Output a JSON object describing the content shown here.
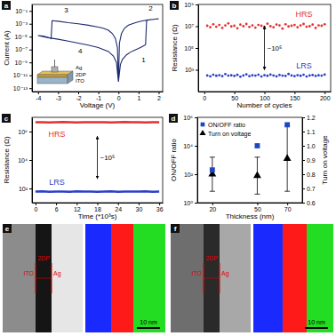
{
  "chart_data": [
    {
      "type": "line",
      "title": "a",
      "x_label": "Voltage (V)",
      "y_label": "Current (A)",
      "log": "y",
      "color": "#1c2a6e",
      "x": [
        0,
        0.1,
        0.2,
        0.4,
        0.6,
        0.8,
        1.0,
        1.2,
        1.35,
        1.4,
        1.5,
        1.75,
        2.0,
        1.75,
        1.5,
        1.25,
        1.0,
        0.75,
        0.5,
        0.3,
        0.15,
        0.05,
        0,
        -0.05,
        -0.15,
        -0.3,
        -0.5,
        -0.75,
        -1.0,
        -1.5,
        -2.0,
        -2.5,
        -3.0,
        -3.3,
        -3.35,
        -3.5,
        -3.75,
        -4.0,
        -3.75,
        -3.5,
        -3.0,
        -2.5,
        -2.0,
        -1.5,
        -1.0,
        -0.5,
        -0.25,
        -0.1,
        0
      ],
      "values": [
        1e-12,
        5e-10,
        3e-09,
        1.5e-08,
        4e-08,
        8e-08,
        1.5e-07,
        3e-07,
        6e-07,
        0.003,
        0.004,
        0.005,
        0.006,
        0.005,
        0.004,
        0.003,
        0.002,
        0.0012,
        0.0006,
        0.0002,
        3e-05,
        1e-06,
        1e-12,
        2e-07,
        5e-06,
        3e-05,
        0.0001,
        0.0002,
        0.0003,
        0.0006,
        0.001,
        0.0015,
        0.0025,
        0.003,
        5e-06,
        8e-06,
        1.2e-05,
        1.5e-05,
        1e-05,
        7e-06,
        4e-06,
        2e-06,
        1e-06,
        5e-07,
        2e-07,
        5e-08,
        1e-08,
        1e-09,
        1e-12
      ],
      "xlim": [
        -4.3,
        2.2
      ],
      "xticks": [
        -4,
        -3,
        -2,
        -1,
        0,
        1,
        2
      ],
      "ylim": [
        3e-14,
        1
      ],
      "yticks": [
        {
          "value": 1e-13,
          "label": "10⁻¹³"
        },
        {
          "value": 1e-11,
          "label": "10⁻¹¹"
        },
        {
          "value": 1e-09,
          "label": "10⁻⁹"
        },
        {
          "value": 1e-07,
          "label": "10⁻⁷"
        },
        {
          "value": 1e-05,
          "label": "10⁻⁵"
        },
        {
          "value": 0.001,
          "label": "10⁻³"
        },
        {
          "value": 0.1,
          "label": "10⁻¹"
        }
      ],
      "annotations": [
        {
          "text": "1",
          "x": 1.25,
          "y": 1e-09
        },
        {
          "text": "2",
          "x": 1.6,
          "y": 0.1
        },
        {
          "text": "3",
          "x": -2.6,
          "y": 0.05
        },
        {
          "text": "4",
          "x": -1.9,
          "y": 3e-08
        }
      ],
      "inset_labels": [
        "Ag",
        "2DP",
        "ITO"
      ]
    },
    {
      "type": "scatter",
      "title": "b",
      "x_label": "Number of cycles",
      "y_label": "Resistance (Ω)",
      "log": "y",
      "x": [
        5,
        10,
        15,
        20,
        25,
        30,
        35,
        40,
        45,
        50,
        55,
        60,
        65,
        70,
        75,
        80,
        85,
        90,
        95,
        100,
        105,
        110,
        115,
        120,
        125,
        130,
        135,
        140,
        145,
        150,
        155,
        160,
        165,
        170,
        175,
        180,
        185,
        190,
        195,
        200
      ],
      "series": [
        {
          "name": "HRS",
          "color": "#e53030",
          "values": [
            11000000.0,
            8000000.0,
            15000000.0,
            9000000.0,
            13000000.0,
            7000000.0,
            12000000.0,
            18000000.0,
            9500000.0,
            11000000.0,
            6500000.0,
            14000000.0,
            10000000.0,
            16000000.0,
            8500000.0,
            12000000.0,
            7500000.0,
            13000000.0,
            11000000.0,
            9000000.0,
            17000000.0,
            10000000.0,
            8000000.0,
            14000000.0,
            12000000.0,
            6000000.0,
            15000000.0,
            9500000.0,
            11000000.0,
            13000000.0,
            8000000.0,
            12000000.0,
            16000000.0,
            9000000.0,
            10000000.0,
            14000000.0,
            7000000.0,
            12000000.0,
            11000000.0,
            15000000.0
          ]
        },
        {
          "name": "LRS",
          "color": "#2b3fc8",
          "values": [
            300,
            250,
            350,
            280,
            320,
            260,
            400,
            290,
            310,
            270,
            340,
            230,
            300,
            380,
            260,
            310,
            290,
            350,
            240,
            320,
            280,
            360,
            300,
            250,
            330,
            290,
            270,
            410,
            300,
            260,
            320,
            280,
            350,
            240,
            300,
            330,
            270,
            310,
            290,
            360
          ]
        }
      ],
      "xlim": [
        -10,
        210
      ],
      "xticks": [
        0,
        50,
        100,
        150,
        200
      ],
      "ylim": [
        10,
        1000000000.0
      ],
      "yticks": [
        {
          "value": 1000,
          "label": "10³"
        },
        {
          "value": 100000,
          "label": "10⁵"
        },
        {
          "value": 10000000.0,
          "label": "10⁷"
        },
        {
          "value": 1000000000.0,
          "label": "10⁹"
        }
      ],
      "annotations": [
        {
          "text": "~10⁵",
          "x": 100,
          "y": 100000.0
        }
      ]
    },
    {
      "type": "line",
      "title": "c",
      "x_label": "Time (*10³s)",
      "y_label": "Resistance (Ω)",
      "log": "y",
      "x": [
        0,
        2,
        4,
        6,
        8,
        10,
        12,
        14,
        16,
        18,
        20,
        22,
        24,
        26,
        28,
        30,
        32,
        34,
        36
      ],
      "series": [
        {
          "name": "HRS",
          "color": "#e53030",
          "values": [
            4500000.0,
            4600000.0,
            4400000.0,
            4500000.0,
            4700000.0,
            4500000.0,
            4400000.0,
            4600000.0,
            4500000.0,
            4500000.0,
            4600000.0,
            4400000.0,
            4500000.0,
            4700000.0,
            4500000.0,
            4600000.0,
            4400000.0,
            4500000.0,
            4600000.0
          ]
        },
        {
          "name": "LRS",
          "color": "#2b3fc8",
          "values": [
            60,
            62,
            58,
            61,
            60,
            59,
            63,
            60,
            61,
            58,
            60,
            62,
            59,
            61,
            60,
            60,
            62,
            59,
            61
          ]
        }
      ],
      "xlim": [
        -1,
        37
      ],
      "xticks": [
        0,
        6,
        12,
        18,
        24,
        30,
        36
      ],
      "ylim": [
        10,
        10000000.0
      ],
      "yticks": [
        {
          "value": 100,
          "label": "10²"
        },
        {
          "value": 10000,
          "label": "10⁴"
        },
        {
          "value": 1000000,
          "label": "10⁶"
        }
      ],
      "annotations": [
        {
          "text": "~10⁵",
          "x": 18,
          "y": 15000
        }
      ]
    },
    {
      "type": "scatter",
      "title": "d",
      "x_label": "Thickness (nm)",
      "y_label": "ON/OFF ratio",
      "y2_label": "Turn on voltage",
      "log": "y",
      "legend": "upper left",
      "x": [
        20,
        50,
        70
      ],
      "series": [
        {
          "name": "Turn on voltage",
          "color": "#000000",
          "marker": "triangle",
          "axis": "y2",
          "values": [
            0.8,
            0.79,
            0.91
          ],
          "errors": [
            0.12,
            0.13,
            0.23
          ]
        },
        {
          "name": "ON/OFF ratio",
          "color": "#1f45c4",
          "marker": "square",
          "values": [
            200,
            10000,
            300000
          ]
        }
      ],
      "xlim": [
        10,
        80
      ],
      "xticks": [
        20,
        50,
        70
      ],
      "ylim": [
        1,
        1000000
      ],
      "yticks": [
        {
          "value": 1,
          "label": "10⁰"
        },
        {
          "value": 100,
          "label": "10²"
        },
        {
          "value": 10000,
          "label": "10⁴"
        },
        {
          "value": 1000000,
          "label": "10⁶"
        }
      ],
      "y2lim": [
        0.6,
        1.2
      ],
      "y2ticks": [
        0.6,
        0.7,
        0.8,
        0.9,
        {
          "value": 1,
          "label": "1.0"
        },
        1.1,
        1.2
      ]
    }
  ],
  "images": [
    {
      "title": "e",
      "labels": [
        "ITO",
        "2DP",
        "Ag"
      ],
      "scale_bar": "10 nm"
    },
    {
      "title": "f",
      "labels": [
        "ITO",
        "2DP",
        "Ag"
      ],
      "scale_bar": "10 nm"
    }
  ]
}
